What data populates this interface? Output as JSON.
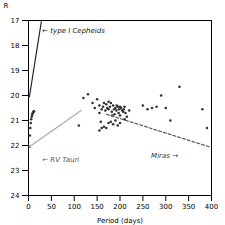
{
  "chart_data": {
    "type": "scatter",
    "xlabel": "Period (days)",
    "ylabel": "R",
    "xlim": [
      0,
      400
    ],
    "ylim": [
      24,
      17
    ],
    "xticks": [
      0,
      50,
      100,
      150,
      200,
      250,
      300,
      350,
      400
    ],
    "yticks": [
      17,
      18,
      19,
      20,
      21,
      22,
      23,
      24
    ],
    "grid": false,
    "series": [
      {
        "type": "scatter",
        "color": "#333333",
        "marker": "circle",
        "x": [
          110,
          120,
          130,
          140,
          145,
          150,
          155,
          155,
          158,
          160,
          163,
          165,
          168,
          170,
          172,
          175,
          175,
          178,
          180,
          182,
          183,
          185,
          187,
          188,
          190,
          192,
          193,
          195,
          197,
          198,
          200,
          200,
          202,
          205,
          207,
          208,
          210,
          212,
          215,
          220,
          170,
          175,
          180,
          185,
          190,
          195,
          155,
          160,
          165,
          200,
          210,
          250,
          260,
          270,
          280,
          290,
          300,
          310,
          330,
          380,
          390
        ],
        "values": [
          21.2,
          20.1,
          19.95,
          20.3,
          20.5,
          20.15,
          20.4,
          20.7,
          21.05,
          20.55,
          20.45,
          20.3,
          20.6,
          20.35,
          20.5,
          20.25,
          20.55,
          20.45,
          20.3,
          20.65,
          20.8,
          20.4,
          20.55,
          20.75,
          20.5,
          20.6,
          20.4,
          20.45,
          20.7,
          20.55,
          20.45,
          20.8,
          20.5,
          20.6,
          20.65,
          20.55,
          20.45,
          20.7,
          20.85,
          20.6,
          21.3,
          21.1,
          21.05,
          21.15,
          21.0,
          21.2,
          21.4,
          21.3,
          21.25,
          21.1,
          20.95,
          20.4,
          20.55,
          20.5,
          20.45,
          20.0,
          20.5,
          21.0,
          19.65,
          20.55,
          21.3
        ]
      },
      {
        "type": "line",
        "color": "#222222",
        "line_style": "solid",
        "x": [
          2,
          28
        ],
        "values": [
          20.05,
          17.05
        ]
      },
      {
        "type": "scatter",
        "color": "#333333",
        "marker": "circle",
        "x": [
          2,
          3,
          4,
          5,
          6,
          7,
          8,
          9,
          10,
          11,
          12
        ],
        "values": [
          22.05,
          21.6,
          21.3,
          21.1,
          20.95,
          20.85,
          20.78,
          20.72,
          20.68,
          20.65,
          20.63
        ]
      },
      {
        "type": "line",
        "color": "#aaaaaa",
        "line_style": "solid",
        "x": [
          2,
          115
        ],
        "values": [
          22.05,
          20.6
        ]
      },
      {
        "type": "line",
        "color": "#555555",
        "line_style": "dashed",
        "x": [
          170,
          395
        ],
        "values": [
          20.75,
          22.05
        ]
      }
    ],
    "annotations": [
      {
        "text": "← type I Cepheids",
        "x": 30,
        "y": 17.4,
        "color": "#222222"
      },
      {
        "text": "← RV Tauri",
        "x": 30,
        "y": 22.55,
        "color": "#555555"
      },
      {
        "text": "Miras →",
        "x": 268,
        "y": 22.4,
        "color": "#333333"
      }
    ]
  }
}
